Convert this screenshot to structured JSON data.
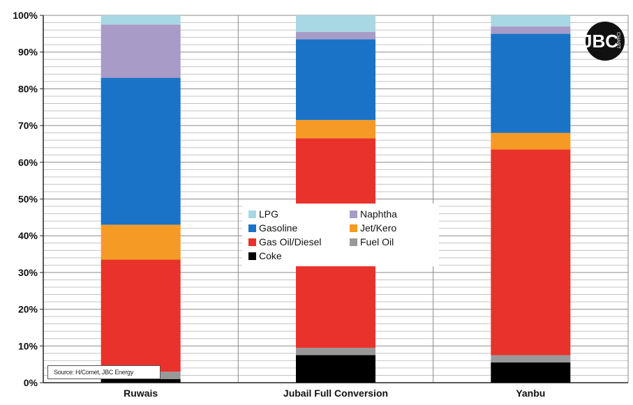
{
  "chart_data": {
    "type": "bar",
    "stacked": true,
    "categories": [
      "Ruwais",
      "Jubail Full Conversion",
      "Yanbu"
    ],
    "ylim": [
      0,
      100
    ],
    "yticks": [
      "0%",
      "10%",
      "20%",
      "30%",
      "40%",
      "50%",
      "60%",
      "70%",
      "80%",
      "90%",
      "100%"
    ],
    "grid": true,
    "legend_position": "center",
    "series": [
      {
        "name": "Coke",
        "color": "#000000",
        "values": [
          1,
          7.5,
          5.5
        ]
      },
      {
        "name": "Fuel Oil",
        "color": "#999999",
        "values": [
          2,
          2.0,
          2.0
        ]
      },
      {
        "name": "Gas Oil/Diesel",
        "color": "#e8322b",
        "values": [
          30.5,
          57.0,
          56.0
        ]
      },
      {
        "name": "Jet/Kero",
        "color": "#f59b25",
        "values": [
          9.5,
          5.0,
          4.5
        ]
      },
      {
        "name": "Gasoline",
        "color": "#1a73c6",
        "values": [
          40,
          22.0,
          27.0
        ]
      },
      {
        "name": "Naphtha",
        "color": "#a99bc7",
        "values": [
          14.5,
          2.0,
          2.0
        ]
      },
      {
        "name": "LPG",
        "color": "#a8d8e4",
        "values": [
          2.5,
          4.5,
          3.0
        ]
      }
    ],
    "legend_order": [
      "LPG",
      "Naphtha",
      "Gasoline",
      "Jet/Kero",
      "Gas Oil/Diesel",
      "Fuel Oil",
      "Coke"
    ],
    "source": "Source: H/Comet, JBC Energy"
  },
  "logo": {
    "text": "JBC",
    "sub": "CHART"
  }
}
